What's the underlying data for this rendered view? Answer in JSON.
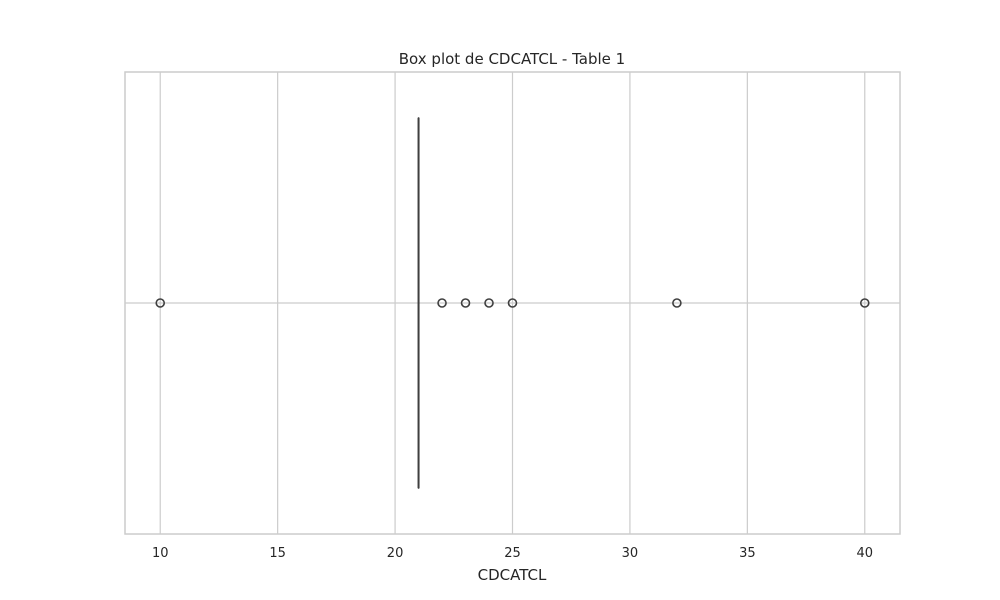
{
  "chart_data": {
    "type": "box",
    "title": "Box plot de CDCATCL - Table 1",
    "xlabel": "CDCATCL",
    "ylabel": "",
    "xlim": [
      8.5,
      41.5
    ],
    "x_ticks": [
      10,
      15,
      20,
      25,
      30,
      35,
      40
    ],
    "grid": true,
    "orientation": "horizontal",
    "box": {
      "q1": 21,
      "median": 21,
      "q3": 21,
      "whisker_low": 21,
      "whisker_high": 21
    },
    "outliers": [
      10,
      22,
      23,
      24,
      25,
      32,
      40
    ],
    "colors": {
      "grid": "#cccccc",
      "axes": "#cccccc",
      "box": "#3f3f3f",
      "text": "#262626"
    }
  }
}
